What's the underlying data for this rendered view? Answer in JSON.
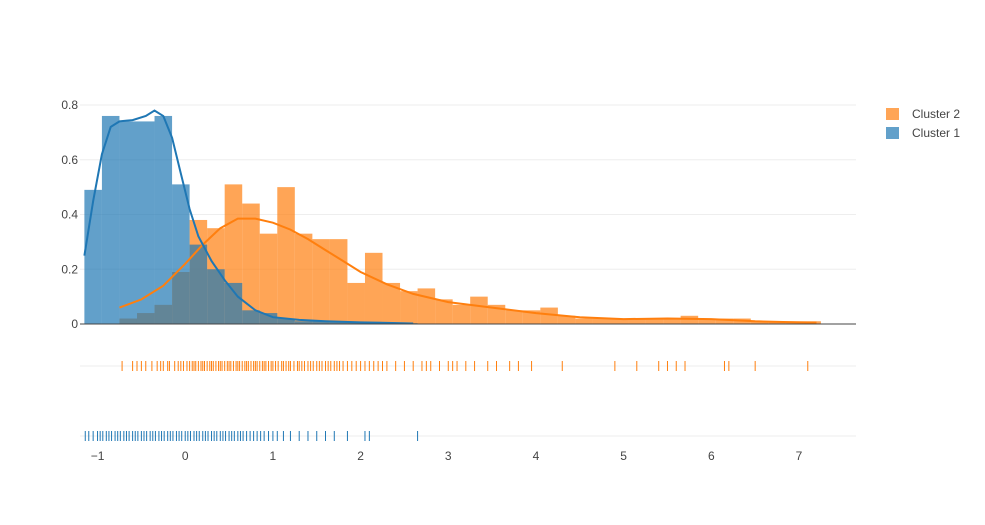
{
  "chart_data": {
    "type": "histogram-distplot",
    "title": "",
    "xlabel": "",
    "ylabel": "",
    "xlim": [
      -1.2,
      7.65
    ],
    "ylim": [
      0,
      0.8
    ],
    "x_ticks": [
      -1,
      0,
      1,
      2,
      3,
      4,
      5,
      6,
      7
    ],
    "y_ticks": [
      0,
      0.2,
      0.4,
      0.6,
      0.8
    ],
    "x_tick_labels": [
      "−1",
      "0",
      "1",
      "2",
      "3",
      "4",
      "5",
      "6",
      "7"
    ],
    "y_tick_labels": [
      "0",
      "0.2",
      "0.4",
      "0.6",
      "0.8"
    ],
    "legend_position": "top-right",
    "grid": true,
    "series": [
      {
        "name": "Cluster 2",
        "color": "#ff7f0e",
        "bin_width": 0.2,
        "histogram": [
          {
            "x0": -0.75,
            "y": 0.02
          },
          {
            "x0": -0.55,
            "y": 0.04
          },
          {
            "x0": -0.35,
            "y": 0.07
          },
          {
            "x0": -0.15,
            "y": 0.19
          },
          {
            "x0": 0.05,
            "y": 0.38
          },
          {
            "x0": 0.25,
            "y": 0.35
          },
          {
            "x0": 0.45,
            "y": 0.51
          },
          {
            "x0": 0.65,
            "y": 0.44
          },
          {
            "x0": 0.85,
            "y": 0.33
          },
          {
            "x0": 1.05,
            "y": 0.5
          },
          {
            "x0": 1.25,
            "y": 0.33
          },
          {
            "x0": 1.45,
            "y": 0.31
          },
          {
            "x0": 1.65,
            "y": 0.31
          },
          {
            "x0": 1.85,
            "y": 0.15
          },
          {
            "x0": 2.05,
            "y": 0.26
          },
          {
            "x0": 2.25,
            "y": 0.15
          },
          {
            "x0": 2.45,
            "y": 0.12
          },
          {
            "x0": 2.65,
            "y": 0.13
          },
          {
            "x0": 2.85,
            "y": 0.09
          },
          {
            "x0": 3.05,
            "y": 0.07
          },
          {
            "x0": 3.25,
            "y": 0.1
          },
          {
            "x0": 3.45,
            "y": 0.07
          },
          {
            "x0": 3.65,
            "y": 0.05
          },
          {
            "x0": 3.85,
            "y": 0.05
          },
          {
            "x0": 4.05,
            "y": 0.06
          },
          {
            "x0": 4.25,
            "y": 0.03
          },
          {
            "x0": 4.45,
            "y": 0.02
          },
          {
            "x0": 4.65,
            "y": 0.02
          },
          {
            "x0": 4.85,
            "y": 0.02
          },
          {
            "x0": 5.05,
            "y": 0.02
          },
          {
            "x0": 5.25,
            "y": 0.02
          },
          {
            "x0": 5.45,
            "y": 0.02
          },
          {
            "x0": 5.65,
            "y": 0.03
          },
          {
            "x0": 5.85,
            "y": 0.02
          },
          {
            "x0": 6.05,
            "y": 0.02
          },
          {
            "x0": 6.25,
            "y": 0.02
          },
          {
            "x0": 6.45,
            "y": 0.01
          },
          {
            "x0": 6.65,
            "y": 0.01
          },
          {
            "x0": 6.85,
            "y": 0.01
          },
          {
            "x0": 7.05,
            "y": 0.01
          }
        ],
        "kde": [
          [
            -0.75,
            0.06
          ],
          [
            -0.5,
            0.09
          ],
          [
            -0.25,
            0.14
          ],
          [
            0.0,
            0.22
          ],
          [
            0.2,
            0.29
          ],
          [
            0.4,
            0.35
          ],
          [
            0.6,
            0.385
          ],
          [
            0.8,
            0.385
          ],
          [
            1.0,
            0.37
          ],
          [
            1.2,
            0.345
          ],
          [
            1.4,
            0.31
          ],
          [
            1.6,
            0.27
          ],
          [
            1.8,
            0.23
          ],
          [
            2.0,
            0.19
          ],
          [
            2.3,
            0.145
          ],
          [
            2.6,
            0.11
          ],
          [
            3.0,
            0.08
          ],
          [
            3.5,
            0.06
          ],
          [
            4.0,
            0.04
          ],
          [
            4.5,
            0.025
          ],
          [
            5.0,
            0.018
          ],
          [
            5.5,
            0.02
          ],
          [
            6.0,
            0.018
          ],
          [
            6.5,
            0.01
          ],
          [
            7.0,
            0.006
          ],
          [
            7.2,
            0.005
          ]
        ],
        "rug": [
          -0.72,
          -0.6,
          -0.55,
          -0.5,
          -0.45,
          -0.38,
          -0.32,
          -0.28,
          -0.25,
          -0.2,
          -0.18,
          -0.12,
          -0.08,
          -0.05,
          -0.02,
          0.02,
          0.05,
          0.08,
          0.1,
          0.12,
          0.15,
          0.18,
          0.2,
          0.22,
          0.25,
          0.28,
          0.3,
          0.32,
          0.35,
          0.38,
          0.4,
          0.42,
          0.45,
          0.48,
          0.5,
          0.52,
          0.55,
          0.58,
          0.6,
          0.62,
          0.65,
          0.68,
          0.7,
          0.72,
          0.75,
          0.78,
          0.8,
          0.82,
          0.85,
          0.88,
          0.9,
          0.92,
          0.95,
          0.98,
          1.0,
          1.03,
          1.06,
          1.1,
          1.12,
          1.15,
          1.18,
          1.2,
          1.24,
          1.28,
          1.3,
          1.33,
          1.36,
          1.4,
          1.43,
          1.46,
          1.5,
          1.53,
          1.56,
          1.6,
          1.63,
          1.66,
          1.7,
          1.73,
          1.76,
          1.8,
          1.85,
          1.9,
          1.95,
          2.0,
          2.05,
          2.1,
          2.15,
          2.2,
          2.25,
          2.3,
          2.4,
          2.5,
          2.6,
          2.7,
          2.75,
          2.8,
          2.9,
          3.0,
          3.05,
          3.1,
          3.2,
          3.3,
          3.45,
          3.55,
          3.7,
          3.8,
          3.95,
          4.3,
          4.9,
          5.15,
          5.4,
          5.5,
          5.6,
          5.7,
          6.15,
          6.2,
          6.5,
          7.1
        ]
      },
      {
        "name": "Cluster 1",
        "color": "#1f77b4",
        "bin_width": 0.2,
        "histogram": [
          {
            "x0": -1.15,
            "y": 0.49
          },
          {
            "x0": -0.95,
            "y": 0.76
          },
          {
            "x0": -0.75,
            "y": 0.74
          },
          {
            "x0": -0.55,
            "y": 0.74
          },
          {
            "x0": -0.35,
            "y": 0.76
          },
          {
            "x0": -0.15,
            "y": 0.51
          },
          {
            "x0": 0.05,
            "y": 0.29
          },
          {
            "x0": 0.25,
            "y": 0.2
          },
          {
            "x0": 0.45,
            "y": 0.15
          },
          {
            "x0": 0.65,
            "y": 0.05
          },
          {
            "x0": 0.85,
            "y": 0.04
          },
          {
            "x0": 1.05,
            "y": 0.02
          },
          {
            "x0": 1.25,
            "y": 0.01
          },
          {
            "x0": 1.45,
            "y": 0.01
          },
          {
            "x0": 1.65,
            "y": 0.01
          },
          {
            "x0": 1.85,
            "y": 0.005
          },
          {
            "x0": 2.05,
            "y": 0.005
          },
          {
            "x0": 2.25,
            "y": 0.003
          },
          {
            "x0": 2.45,
            "y": 0.003
          }
        ],
        "kde": [
          [
            -1.15,
            0.25
          ],
          [
            -1.05,
            0.45
          ],
          [
            -0.95,
            0.62
          ],
          [
            -0.85,
            0.72
          ],
          [
            -0.75,
            0.74
          ],
          [
            -0.6,
            0.745
          ],
          [
            -0.45,
            0.76
          ],
          [
            -0.35,
            0.78
          ],
          [
            -0.25,
            0.76
          ],
          [
            -0.15,
            0.68
          ],
          [
            -0.05,
            0.55
          ],
          [
            0.05,
            0.42
          ],
          [
            0.15,
            0.32
          ],
          [
            0.3,
            0.23
          ],
          [
            0.45,
            0.16
          ],
          [
            0.6,
            0.1
          ],
          [
            0.8,
            0.05
          ],
          [
            1.0,
            0.025
          ],
          [
            1.3,
            0.015
          ],
          [
            1.6,
            0.01
          ],
          [
            2.0,
            0.006
          ],
          [
            2.3,
            0.004
          ],
          [
            2.6,
            0.002
          ]
        ],
        "rug": [
          -1.14,
          -1.1,
          -1.05,
          -1.0,
          -0.97,
          -0.94,
          -0.9,
          -0.87,
          -0.84,
          -0.8,
          -0.77,
          -0.74,
          -0.7,
          -0.67,
          -0.64,
          -0.6,
          -0.57,
          -0.54,
          -0.5,
          -0.47,
          -0.44,
          -0.4,
          -0.37,
          -0.34,
          -0.3,
          -0.27,
          -0.24,
          -0.2,
          -0.17,
          -0.14,
          -0.1,
          -0.07,
          -0.04,
          0.0,
          0.03,
          0.06,
          0.1,
          0.13,
          0.16,
          0.2,
          0.23,
          0.26,
          0.3,
          0.33,
          0.36,
          0.4,
          0.43,
          0.46,
          0.5,
          0.53,
          0.56,
          0.6,
          0.63,
          0.66,
          0.7,
          0.74,
          0.78,
          0.82,
          0.86,
          0.9,
          0.95,
          1.0,
          1.05,
          1.12,
          1.2,
          1.3,
          1.4,
          1.5,
          1.6,
          1.7,
          1.85,
          2.05,
          2.1,
          2.65
        ]
      }
    ]
  }
}
